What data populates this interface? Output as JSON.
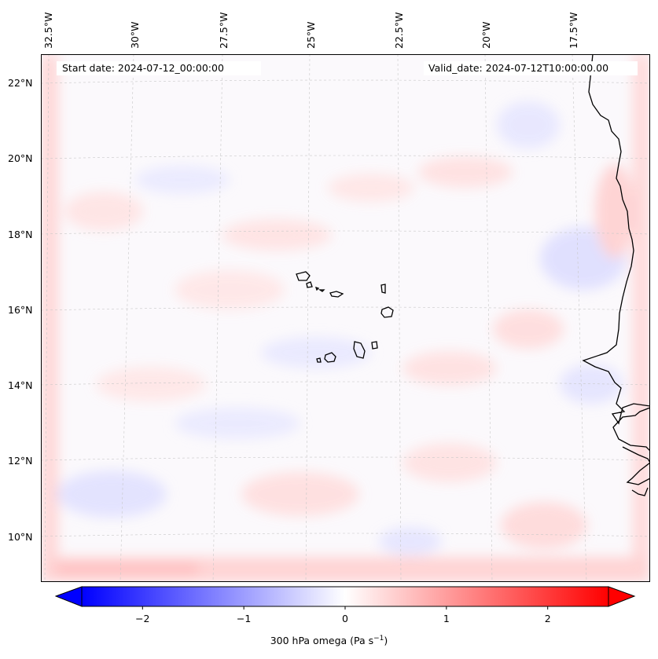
{
  "map": {
    "start_date_label": "Start date: 2024-07-12_00:00:00",
    "valid_date_label": "Valid_date: 2024-07-12T10:00:00.00",
    "lon_labels": [
      "32.5°W",
      "30°W",
      "27.5°W",
      "25°W",
      "22.5°W",
      "20°W",
      "17.5°W"
    ],
    "lat_labels": [
      "22°N",
      "20°N",
      "18°N",
      "16°N",
      "14°N",
      "12°N",
      "10°N"
    ],
    "field": "300 hPa omega",
    "colors": {
      "negative": "#0000ff",
      "zero": "#ffffff",
      "positive": "#ff0000",
      "grid": "#c8c8c8",
      "coast": "#000000"
    }
  },
  "colorbar": {
    "label_text": "300 hPa omega (Pa s",
    "label_sup": "−1",
    "label_close": ")",
    "range": [
      -2.6,
      2.6
    ],
    "ticks": [
      "−2",
      "−1",
      "0",
      "1",
      "2"
    ],
    "tick_values": [
      -2,
      -1,
      0,
      1,
      2
    ]
  }
}
